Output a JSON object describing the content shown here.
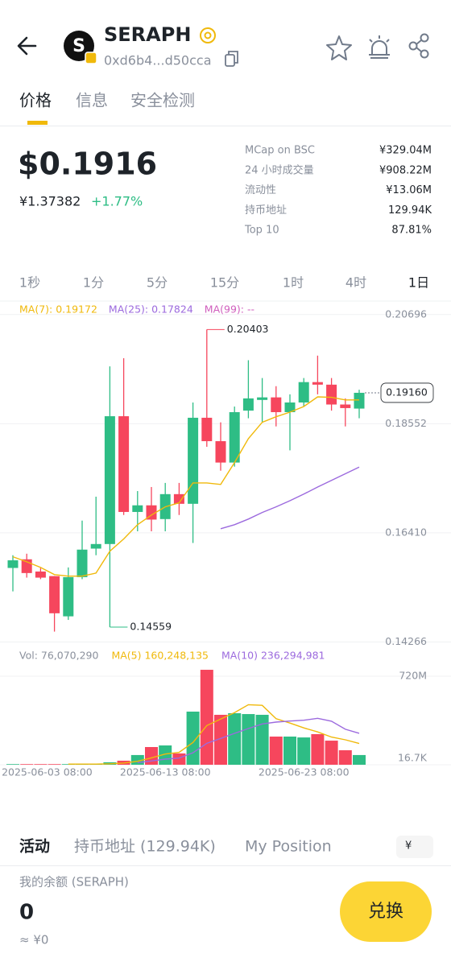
{
  "header": {
    "title": "SERAPH",
    "address": "0xd6b4...d50cca"
  },
  "tabs": [
    "价格",
    "信息",
    "安全检测"
  ],
  "price": {
    "usd": "$0.1916",
    "cny": "¥1.37382",
    "change": "+1.77%"
  },
  "stats": [
    {
      "label": "MCap on BSC",
      "value": "¥329.04M"
    },
    {
      "label": "24 小时成交量",
      "value": "¥908.22M"
    },
    {
      "label": "流动性",
      "value": "¥13.06M"
    },
    {
      "label": "持币地址",
      "value": "129.94K"
    },
    {
      "label": "Top 10",
      "value": "87.81%"
    }
  ],
  "intervals": [
    "1秒",
    "1分",
    "5分",
    "15分",
    "1时",
    "4时",
    "1日"
  ],
  "chart_data": {
    "type": "candlestick",
    "categories": [
      null,
      null,
      "2025-06-03 08:00",
      null,
      null,
      null,
      null,
      null,
      null,
      null,
      null,
      "2025-06-13 08:00",
      null,
      null,
      null,
      null,
      null,
      null,
      null,
      null,
      null,
      "2025-06-23 08:00",
      null,
      null,
      null,
      null
    ],
    "open": [
      0.1572,
      0.1589,
      0.1565,
      0.1556,
      0.1477,
      0.1554,
      0.161,
      0.1619,
      0.187,
      0.1682,
      0.1695,
      0.1668,
      0.1717,
      0.1698,
      0.1867,
      0.1821,
      0.1779,
      0.1881,
      0.1902,
      0.1907,
      0.1878,
      0.1897,
      0.1937,
      0.1932,
      0.1893,
      0.1885
    ],
    "close": [
      0.1587,
      0.1562,
      0.1553,
      0.1483,
      0.1554,
      0.1608,
      0.1619,
      0.187,
      0.1682,
      0.1695,
      0.1667,
      0.1717,
      0.1698,
      0.1867,
      0.1821,
      0.1779,
      0.1878,
      0.1905,
      0.1907,
      0.1878,
      0.1897,
      0.1937,
      0.1932,
      0.1893,
      0.1886,
      0.1916
    ],
    "high": [
      0.1597,
      0.16,
      0.1572,
      0.1556,
      0.1573,
      0.1665,
      0.1712,
      0.1968,
      0.1984,
      0.1723,
      0.1731,
      0.1739,
      0.1739,
      0.1897,
      0.20403,
      0.1858,
      0.1889,
      0.198,
      0.1945,
      0.1929,
      0.1913,
      0.1945,
      0.1989,
      0.1945,
      0.1905,
      0.1922
    ],
    "low": [
      0.1526,
      0.1553,
      0.155,
      0.1447,
      0.147,
      0.155,
      0.1597,
      0.14559,
      0.1676,
      0.1644,
      0.1644,
      0.1644,
      0.1676,
      0.1621,
      0.181,
      0.1763,
      0.1771,
      0.1866,
      0.1858,
      0.185,
      0.1803,
      0.1889,
      0.1913,
      0.1881,
      0.185,
      0.1866
    ],
    "up_color": "#2ebd85",
    "down_color": "#f6465d",
    "series": [
      {
        "name": "MA(7): 0.19172",
        "color": "#f0b90b",
        "values": [
          0.1594,
          0.1584,
          0.1573,
          0.1559,
          0.1556,
          0.1556,
          0.1562,
          0.1605,
          0.1629,
          0.1657,
          0.1676,
          0.1692,
          0.17,
          0.1739,
          0.1739,
          0.1736,
          0.1779,
          0.1826,
          0.1858,
          0.1869,
          0.1878,
          0.1889,
          0.1908,
          0.1907,
          0.1902,
          0.1902
        ]
      },
      {
        "name": "MA(25): 0.17824",
        "color": "#9c6ade",
        "values": [
          null,
          null,
          null,
          null,
          null,
          null,
          null,
          null,
          null,
          null,
          null,
          null,
          null,
          null,
          null,
          0.1649,
          0.1657,
          0.1668,
          0.1681,
          0.1692,
          0.1704,
          0.1717,
          0.1731,
          0.1744,
          0.1757,
          0.177
        ]
      },
      {
        "name": "MA(99): --",
        "color": "#d05fbd"
      }
    ],
    "ylim": [
      0.141,
      0.2093
    ],
    "yticks": [
      0.20696,
      0.18552,
      {
        "value": 0.1641,
        "label": "0.16410"
      },
      0.14266
    ],
    "high_label": 0.20403,
    "low_label": 0.14559,
    "last_price": {
      "value": 0.1916,
      "label": "0.19160"
    },
    "grid": true,
    "volume": {
      "title": "Vol: 76,070,290",
      "values": [
        5000000,
        5000000,
        5000000,
        5000000,
        5000000,
        5000000,
        5000000,
        20000000,
        33000000,
        79000000,
        144000000,
        157000000,
        92000000,
        432000000,
        772000000,
        406000000,
        419000000,
        412000000,
        406000000,
        229000000,
        229000000,
        222000000,
        249000000,
        196000000,
        118000000,
        79000000
      ],
      "series": [
        {
          "name": "MA(5) 160,248,135",
          "color": "#f0b90b",
          "values": [
            null,
            null,
            null,
            null,
            5000000,
            5000000,
            5000000,
            8000000,
            13600000,
            28400000,
            56000000,
            87000000,
            101000000,
            181000000,
            319000000,
            372000000,
            424000000,
            488000000,
            483000000,
            374000000,
            339000000,
            300000000,
            267000000,
            225000000,
            203000000,
            173000000
          ]
        },
        {
          "name": "MA(10) 236,294,981",
          "color": "#9c6ade",
          "values": [
            null,
            null,
            null,
            null,
            null,
            null,
            null,
            null,
            null,
            16700000,
            30600000,
            45800000,
            54500000,
            97200000,
            173900000,
            214000000,
            255400000,
            294600000,
            331900000,
            346900000,
            355400000,
            361900000,
            377600000,
            354000000,
            288600000,
            255900000
          ]
        }
      ],
      "ylim": [
        0,
        818000000
      ],
      "yticks": [
        {
          "value": 16700,
          "label": "16.7K"
        },
        {
          "value": 720000000,
          "label": "720M"
        }
      ]
    }
  },
  "bottom_tabs": [
    "活动",
    "持币地址 (129.94K)",
    "My Position"
  ],
  "currency_toggle": "¥",
  "balance": {
    "label": "我的余额 (SERAPH)",
    "amount": "0",
    "approx": "≈ ¥0"
  },
  "swap_button": "兑换"
}
